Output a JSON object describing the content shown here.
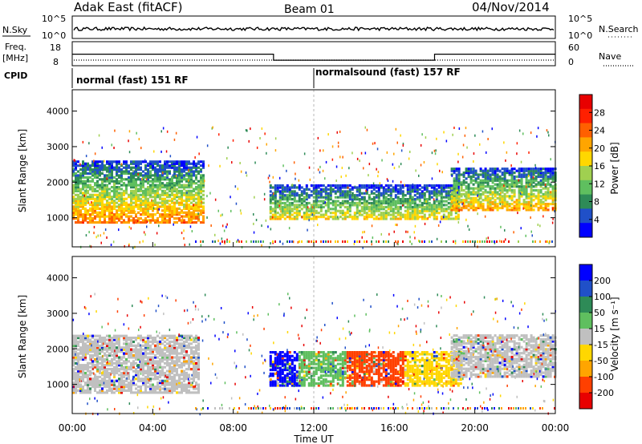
{
  "header": {
    "station": "Adak East (fitACF)",
    "beam": "Beam 01",
    "date": "04/Nov/2014"
  },
  "top_panels": {
    "nsky_label": "N.Sky",
    "nsky_ticks": [
      "10^5",
      "10^0"
    ],
    "nsearch_label": "N.Search",
    "nsearch_ticks": [
      "10^5",
      "10^0"
    ],
    "freq_label": "Freq.",
    "freq_unit": "[MHz]",
    "freq_ticks": [
      "18",
      "8"
    ],
    "nave_label": "Nave",
    "nave_ticks": [
      "60",
      "0"
    ],
    "cpid_label": "CPID",
    "cpid_modes": [
      {
        "label": "normal (fast) 151 RF",
        "start_hour": 0,
        "end_hour": 12
      },
      {
        "label": "normalsound (fast) 157 RF",
        "start_hour": 12,
        "end_hour": 24
      }
    ],
    "freq_steps": [
      {
        "start_hour": 0,
        "end_hour": 10,
        "mhz": 12.8
      },
      {
        "start_hour": 10,
        "end_hour": 18,
        "mhz": 10.3
      },
      {
        "start_hour": 18,
        "end_hour": 24,
        "mhz": 12.8
      }
    ]
  },
  "chart_data": [
    {
      "type": "heatmap",
      "title": "Power",
      "xlabel": "Time UT",
      "ylabel": "Slant Range [km]",
      "xlim": [
        0,
        24
      ],
      "ylim": [
        180,
        4600
      ],
      "y_ticks": [
        "1000",
        "2000",
        "3000",
        "4000"
      ],
      "colorbar_label": "Power [dB]",
      "colorbar_ticks": [
        "4",
        "8",
        "12",
        "16",
        "20",
        "24",
        "28"
      ],
      "colorbar_range": [
        0,
        32
      ],
      "colors": [
        "#0000ff",
        "#2050c8",
        "#2e8b57",
        "#5fbf5f",
        "#a0d050",
        "#ffd700",
        "#ffa500",
        "#ff6000",
        "#ff2000",
        "#e80000"
      ],
      "regions": [
        {
          "start_hour": 0,
          "end_hour": 6.5,
          "range_lo_km": 850,
          "range_hi_km": 2600,
          "power_db": 24
        },
        {
          "start_hour": 9.8,
          "end_hour": 19.2,
          "range_lo_km": 950,
          "range_hi_km": 1900,
          "power_db": 18
        },
        {
          "start_hour": 18.8,
          "end_hour": 24,
          "range_lo_km": 1200,
          "range_hi_km": 2400,
          "power_db": 22
        }
      ]
    },
    {
      "type": "heatmap",
      "title": "Velocity",
      "xlabel": "Time UT",
      "ylabel": "Slant Range [km]",
      "xlim": [
        0,
        24
      ],
      "ylim": [
        180,
        4600
      ],
      "y_ticks": [
        "1000",
        "2000",
        "3000",
        "4000"
      ],
      "colorbar_label": "Velocity [m s⁻¹]",
      "colorbar_ticks": [
        "200",
        "100",
        "50",
        "15",
        "-15",
        "-50",
        "-100",
        "-200"
      ],
      "colorbar_range": [
        -250,
        250
      ],
      "colors": [
        "#0000ff",
        "#2050c8",
        "#2e8b57",
        "#5fbf5f",
        "#c0c0c0",
        "#ffd700",
        "#ffa500",
        "#ff4000",
        "#e80000"
      ],
      "regions": [
        {
          "start_hour": 0,
          "end_hour": 6.3,
          "range_lo_km": 750,
          "range_hi_km": 2400,
          "velocity_ms": 0
        },
        {
          "start_hour": 9.8,
          "end_hour": 19.3,
          "range_lo_km": 950,
          "range_hi_km": 1900,
          "velocity_ms": -80
        },
        {
          "start_hour": 18.8,
          "end_hour": 24,
          "range_lo_km": 1200,
          "range_hi_km": 2400,
          "velocity_ms": 0
        }
      ]
    }
  ],
  "time_axis": {
    "ticks": [
      "00:00",
      "04:00",
      "08:00",
      "12:00",
      "16:00",
      "20:00",
      "00:00"
    ],
    "label": "Time UT"
  }
}
